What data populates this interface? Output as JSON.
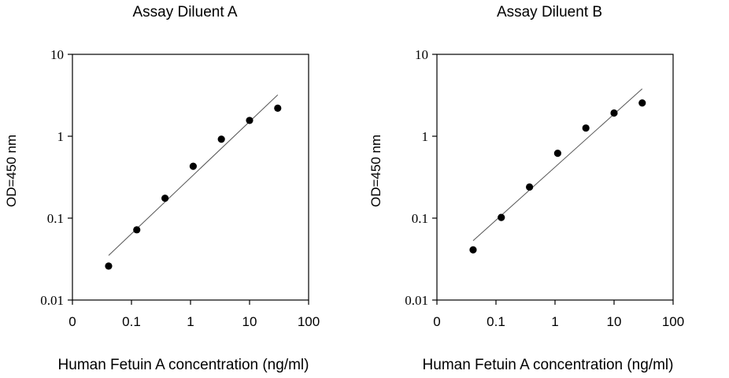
{
  "chart_data": [
    {
      "type": "scatter",
      "title": "Assay Diluent A",
      "xlabel": "Human Fetuin A concentration (ng/ml)",
      "ylabel": "OD=450 nm",
      "x_scale": "log",
      "y_scale": "log",
      "xlim": [
        0.01,
        100
      ],
      "ylim": [
        0.01,
        10
      ],
      "x_tick_labels": [
        "0",
        "0.1",
        "1",
        "10",
        "100"
      ],
      "y_tick_labels": [
        "0.01",
        "0.1",
        "1",
        "10"
      ],
      "grid": false,
      "series": [
        {
          "x": [
            0.041,
            0.123,
            0.37,
            1.11,
            3.33,
            10,
            30
          ],
          "y": [
            0.026,
            0.072,
            0.175,
            0.43,
            0.92,
            1.56,
            2.2
          ]
        }
      ],
      "trendline": {
        "x": [
          0.041,
          30
        ],
        "y": [
          0.035,
          3.2
        ]
      }
    },
    {
      "type": "scatter",
      "title": "Assay Diluent B",
      "xlabel": "Human Fetuin A concentration (ng/ml)",
      "ylabel": "OD=450 nm",
      "x_scale": "log",
      "y_scale": "log",
      "xlim": [
        0.01,
        100
      ],
      "ylim": [
        0.01,
        10
      ],
      "x_tick_labels": [
        "0",
        "0.1",
        "1",
        "10",
        "100"
      ],
      "y_tick_labels": [
        "0.01",
        "0.1",
        "1",
        "10"
      ],
      "grid": false,
      "series": [
        {
          "x": [
            0.041,
            0.123,
            0.37,
            1.11,
            3.33,
            10,
            30
          ],
          "y": [
            0.041,
            0.102,
            0.24,
            0.62,
            1.26,
            1.92,
            2.55
          ]
        }
      ],
      "trendline": {
        "x": [
          0.041,
          30
        ],
        "y": [
          0.053,
          3.8
        ]
      }
    }
  ],
  "colors": {
    "marker": "#000000",
    "line": "#555555",
    "axis": "#000000"
  }
}
